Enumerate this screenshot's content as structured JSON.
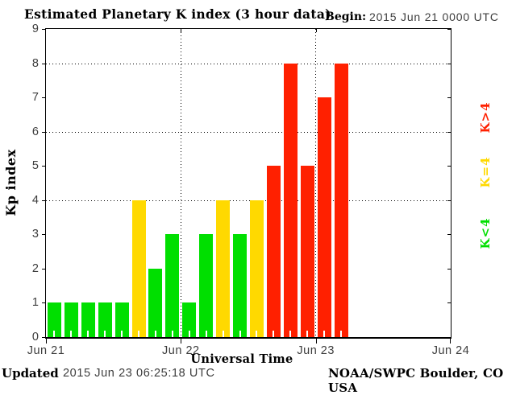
{
  "chart": {
    "title": "Estimated Planetary K index (3 hour data)",
    "begin_label": "Begin:",
    "begin_value": "2015 Jun 21 0000 UTC",
    "xlabel": "Universal Time",
    "ylabel": "Kp index",
    "footer_left_label": "Updated",
    "footer_left_value": "2015 Jun 23 06:25:18 UTC",
    "footer_right": "NOAA/SWPC Boulder, CO USA"
  },
  "chart_data": {
    "type": "bar",
    "title": "Estimated Planetary K index (3 hour data)",
    "begin": "2015 Jun 21 0000 UTC",
    "updated": "2015 Jun 23 06:25:18 UTC",
    "source": "NOAA/SWPC Boulder, CO USA",
    "xlabel": "Universal Time",
    "ylabel": "Kp index",
    "ylim": [
      0,
      9
    ],
    "yticks": [
      0,
      1,
      2,
      3,
      4,
      5,
      6,
      7,
      8,
      9
    ],
    "grid_y": [
      4,
      6,
      8
    ],
    "x_day_labels": [
      "Jun 21",
      "Jun 22",
      "Jun 23",
      "Jun 24"
    ],
    "days_span": 3,
    "bars_per_day": 8,
    "values": [
      1,
      1,
      1,
      1,
      1,
      4,
      2,
      3,
      1,
      3,
      4,
      3,
      4,
      5,
      8,
      5,
      7,
      8
    ],
    "series_note": "3-hour Kp values; Jun 21: 1,1,1,1,1,4,2,3 | Jun 22: 1,3,4,3,4,5,8,5 | Jun 23: 7,8",
    "colors": {
      "k_below_4": "#00DF00",
      "k_equal_4": "#FFD900",
      "k_above_4": "#FF2000"
    },
    "legend": [
      {
        "label": "K>4",
        "color": "#FF2000"
      },
      {
        "label": "K=4",
        "color": "#FFD900"
      },
      {
        "label": "K<4",
        "color": "#00DF00"
      }
    ],
    "legend_position": "right-rotated",
    "grid": "dotted horizontal at 4,6,8; dotted vertical at day boundaries"
  }
}
